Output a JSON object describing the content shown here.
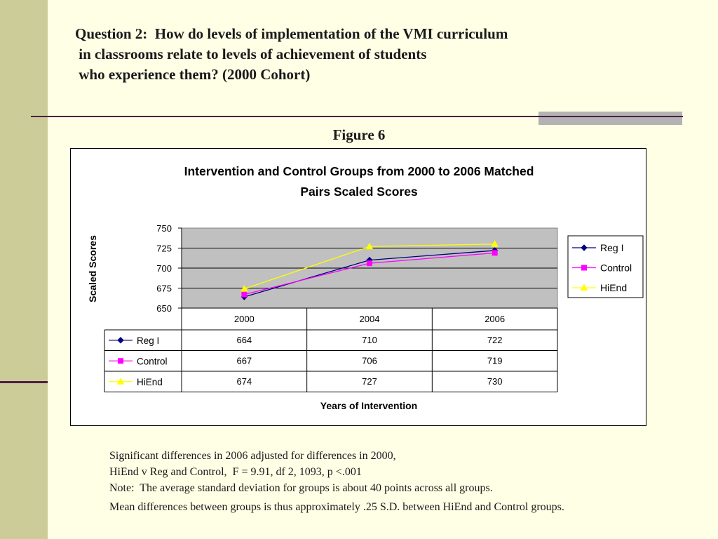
{
  "slide": {
    "title_lines": [
      "Question 2:  How do levels of implementation of the VMI curriculum",
      " in classrooms relate to levels of achievement of students",
      " who experience them? (2000 Cohort)"
    ],
    "figure_label": "Figure 6",
    "notes": [
      "Significant differences in 2006 adjusted for differences in 2000,",
      "HiEnd v Reg and Control,  F = 9.91, df 2, 1093, p <.001",
      "Note:  The average standard deviation for groups is about 40 points across all groups.",
      "Mean differences between groups is thus approximately .25 S.D. between HiEnd and Control groups."
    ]
  },
  "chart_data": {
    "type": "line",
    "title_lines": [
      "Intervention and Control Groups from 2000 to 2006 Matched",
      "Pairs Scaled Scores"
    ],
    "xlabel": "Years of Intervention",
    "ylabel": "Scaled Scores",
    "categories": [
      "2000",
      "2004",
      "2006"
    ],
    "ylim": [
      650,
      750
    ],
    "yticks": [
      650,
      675,
      700,
      725,
      750
    ],
    "grid": true,
    "legend_position": "right",
    "data_table": true,
    "series": [
      {
        "name": "Reg I",
        "values": [
          664,
          710,
          722
        ],
        "color": "#000080",
        "marker": "diamond"
      },
      {
        "name": "Control",
        "values": [
          667,
          706,
          719
        ],
        "color": "#ff00ff",
        "marker": "square"
      },
      {
        "name": "HiEnd",
        "values": [
          674,
          727,
          730
        ],
        "color": "#ffff00",
        "marker": "triangle"
      }
    ],
    "plot_background": "#c0c0c0"
  }
}
